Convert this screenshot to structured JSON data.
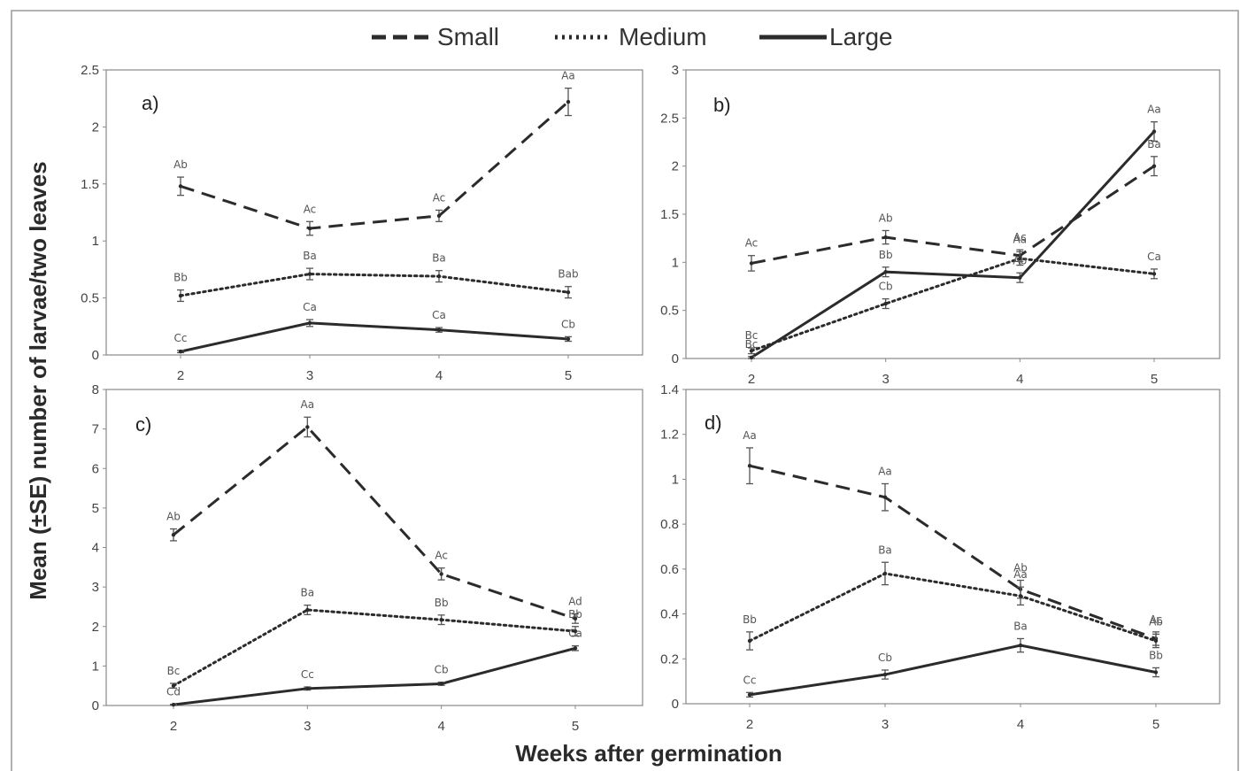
{
  "figure": {
    "ylabel": "Mean (±SE) number of larvae/two leaves",
    "xlabel": "Weeks after germination",
    "legend": [
      {
        "name": "Small",
        "style": "dashed"
      },
      {
        "name": "Medium",
        "style": "dotted"
      },
      {
        "name": "Large",
        "style": "solid"
      }
    ],
    "colors": {
      "line": "#2b2b2b",
      "frame": "#888888",
      "errorbar": "#555555"
    }
  },
  "chart_data": [
    {
      "type": "line",
      "panel": "a)",
      "x": [
        2,
        3,
        4,
        5
      ],
      "ylim": [
        0,
        2.5
      ],
      "yticks": [
        0,
        0.5,
        1,
        1.5,
        2,
        2.5
      ],
      "ytick_labels": [
        "0",
        "0.5",
        "1",
        "1.5",
        "2",
        "2.5"
      ],
      "series": [
        {
          "name": "Small",
          "style": "dashed",
          "values": [
            1.48,
            1.11,
            1.22,
            2.22
          ],
          "se": [
            0.08,
            0.06,
            0.05,
            0.12
          ],
          "letters": [
            "Ab",
            "Ac",
            "Ac",
            "Aa"
          ]
        },
        {
          "name": "Medium",
          "style": "dotted",
          "values": [
            0.52,
            0.71,
            0.69,
            0.55
          ],
          "se": [
            0.05,
            0.05,
            0.05,
            0.05
          ],
          "letters": [
            "Bb",
            "Ba",
            "Ba",
            "Bab"
          ]
        },
        {
          "name": "Large",
          "style": "solid",
          "values": [
            0.03,
            0.28,
            0.22,
            0.14
          ],
          "se": [
            0.01,
            0.03,
            0.02,
            0.02
          ],
          "letters": [
            "Cc",
            "Ca",
            "Ca",
            "Cb"
          ]
        }
      ]
    },
    {
      "type": "line",
      "panel": "b)",
      "x": [
        2,
        3,
        4,
        5
      ],
      "ylim": [
        0,
        3
      ],
      "yticks": [
        0,
        0.5,
        1,
        1.5,
        2,
        2.5,
        3
      ],
      "ytick_labels": [
        "0",
        "0.5",
        "1",
        "1.5",
        "2",
        "2.5",
        "3"
      ],
      "series": [
        {
          "name": "Small",
          "style": "dashed",
          "values": [
            0.99,
            1.26,
            1.07,
            2.0
          ],
          "se": [
            0.08,
            0.07,
            0.06,
            0.1
          ],
          "letters": [
            "Ac",
            "Ab",
            "Ac",
            "Ba"
          ]
        },
        {
          "name": "Medium",
          "style": "dotted",
          "values": [
            0.08,
            0.57,
            1.04,
            0.88
          ],
          "se": [
            0.03,
            0.05,
            0.07,
            0.05
          ],
          "letters": [
            "Bc",
            "Cb",
            "Aa",
            "Ca"
          ]
        },
        {
          "name": "Large",
          "style": "solid",
          "values": [
            0.01,
            0.9,
            0.84,
            2.36
          ],
          "se": [
            0.01,
            0.05,
            0.05,
            0.1
          ],
          "letters": [
            "Bc",
            "Bb",
            "Ab",
            "Aa"
          ]
        }
      ]
    },
    {
      "type": "line",
      "panel": "c)",
      "x": [
        2,
        3,
        4,
        5
      ],
      "ylim": [
        0,
        8
      ],
      "yticks": [
        0,
        1,
        2,
        3,
        4,
        5,
        6,
        7,
        8
      ],
      "ytick_labels": [
        "0",
        "1",
        "2",
        "3",
        "4",
        "5",
        "6",
        "7",
        "8"
      ],
      "series": [
        {
          "name": "Small",
          "style": "dashed",
          "values": [
            4.32,
            7.05,
            3.33,
            2.2
          ],
          "se": [
            0.15,
            0.25,
            0.15,
            0.12
          ],
          "letters": [
            "Ab",
            "Aa",
            "Ac",
            "Ad"
          ]
        },
        {
          "name": "Medium",
          "style": "dotted",
          "values": [
            0.5,
            2.42,
            2.17,
            1.88
          ],
          "se": [
            0.06,
            0.12,
            0.12,
            0.12
          ],
          "letters": [
            "Bc",
            "Ba",
            "Bb",
            "Bb"
          ]
        },
        {
          "name": "Large",
          "style": "solid",
          "values": [
            0.02,
            0.43,
            0.55,
            1.45
          ],
          "se": [
            0.01,
            0.04,
            0.04,
            0.06
          ],
          "letters": [
            "Cd",
            "Cc",
            "Cb",
            "Ca"
          ]
        }
      ]
    },
    {
      "type": "line",
      "panel": "d)",
      "x": [
        2,
        3,
        4,
        5
      ],
      "ylim": [
        0,
        1.4
      ],
      "yticks": [
        0,
        0.2,
        0.4,
        0.6,
        0.8,
        1,
        1.2,
        1.4
      ],
      "ytick_labels": [
        "0",
        "0.2",
        "0.4",
        "0.6",
        "0.8",
        "1",
        "1.2",
        "1.4"
      ],
      "series": [
        {
          "name": "Small",
          "style": "dashed",
          "values": [
            1.06,
            0.92,
            0.51,
            0.29
          ],
          "se": [
            0.08,
            0.06,
            0.04,
            0.03
          ],
          "letters": [
            "Aa",
            "Aa",
            "Ab",
            "Ac"
          ]
        },
        {
          "name": "Medium",
          "style": "dotted",
          "values": [
            0.28,
            0.58,
            0.48,
            0.28
          ],
          "se": [
            0.04,
            0.05,
            0.04,
            0.03
          ],
          "letters": [
            "Bb",
            "Ba",
            "Aa",
            "Ab"
          ]
        },
        {
          "name": "Large",
          "style": "solid",
          "values": [
            0.04,
            0.13,
            0.26,
            0.14
          ],
          "se": [
            0.01,
            0.02,
            0.03,
            0.02
          ],
          "letters": [
            "Cc",
            "Cb",
            "Ba",
            "Bb"
          ]
        }
      ]
    }
  ]
}
